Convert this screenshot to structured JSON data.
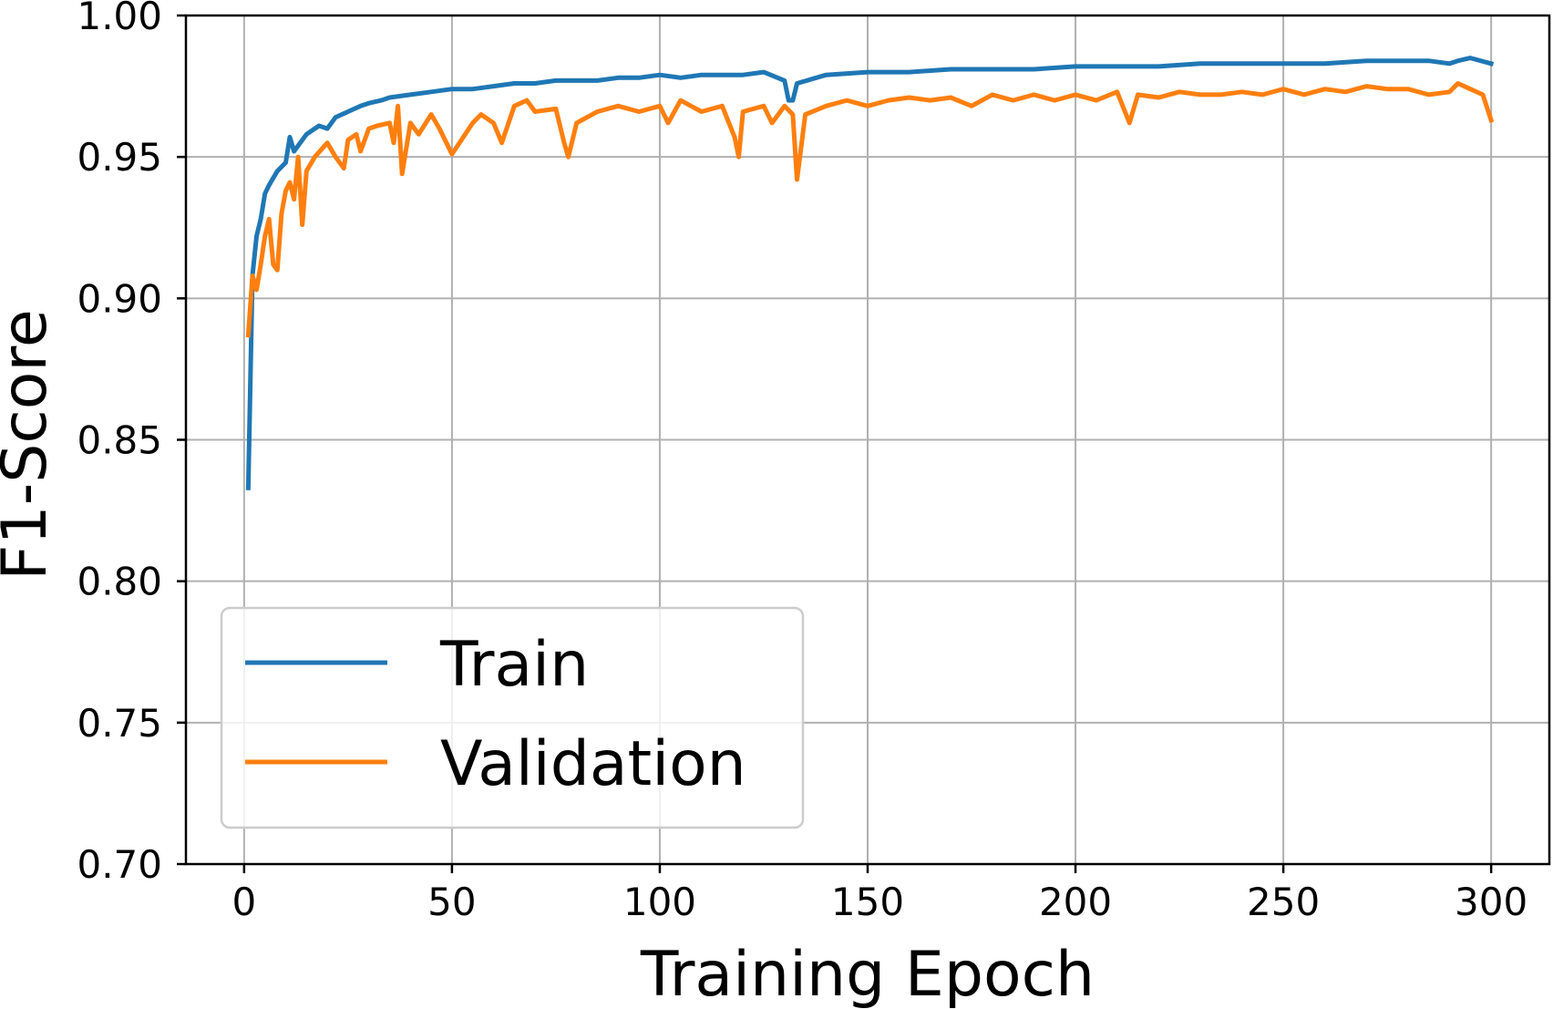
{
  "chart_data": {
    "type": "line",
    "xlabel": "Training Epoch",
    "ylabel": "F1-Score",
    "xlim": [
      -14,
      314
    ],
    "ylim": [
      0.7,
      1.0
    ],
    "xticks": [
      0,
      50,
      100,
      150,
      200,
      250,
      300
    ],
    "xtick_labels": [
      "0",
      "50",
      "100",
      "150",
      "200",
      "250",
      "300"
    ],
    "yticks": [
      0.7,
      0.75,
      0.8,
      0.85,
      0.9,
      0.95,
      1.0
    ],
    "ytick_labels": [
      "0.70",
      "0.75",
      "0.80",
      "0.85",
      "0.90",
      "0.95",
      "1.00"
    ],
    "grid": true,
    "legend": "lower-left",
    "series": [
      {
        "name": "Train",
        "color": "#1f77b4",
        "x": [
          1,
          2,
          3,
          4,
          5,
          6,
          8,
          10,
          11,
          12,
          15,
          18,
          20,
          22,
          25,
          28,
          30,
          33,
          35,
          40,
          45,
          50,
          55,
          60,
          65,
          70,
          75,
          80,
          85,
          90,
          95,
          100,
          105,
          110,
          115,
          120,
          125,
          130,
          131,
          132,
          133,
          140,
          150,
          160,
          170,
          180,
          190,
          200,
          210,
          220,
          230,
          240,
          250,
          260,
          270,
          280,
          285,
          290,
          292,
          295,
          300
        ],
        "y": [
          0.833,
          0.908,
          0.922,
          0.928,
          0.937,
          0.94,
          0.945,
          0.948,
          0.957,
          0.952,
          0.958,
          0.961,
          0.96,
          0.964,
          0.966,
          0.968,
          0.969,
          0.97,
          0.971,
          0.972,
          0.973,
          0.974,
          0.974,
          0.975,
          0.976,
          0.976,
          0.977,
          0.977,
          0.977,
          0.978,
          0.978,
          0.979,
          0.978,
          0.979,
          0.979,
          0.979,
          0.98,
          0.977,
          0.97,
          0.97,
          0.976,
          0.979,
          0.98,
          0.98,
          0.981,
          0.981,
          0.981,
          0.982,
          0.982,
          0.982,
          0.983,
          0.983,
          0.983,
          0.983,
          0.984,
          0.984,
          0.984,
          0.983,
          0.984,
          0.985,
          0.983
        ]
      },
      {
        "name": "Validation",
        "color": "#ff7f0e",
        "x": [
          1,
          2,
          3,
          4,
          5,
          6,
          7,
          8,
          9,
          10,
          11,
          12,
          13,
          14,
          15,
          17,
          20,
          22,
          24,
          25,
          27,
          28,
          30,
          32,
          35,
          36,
          37,
          38,
          40,
          42,
          45,
          47,
          50,
          55,
          57,
          60,
          62,
          65,
          68,
          70,
          75,
          77,
          78,
          80,
          85,
          90,
          95,
          100,
          102,
          105,
          110,
          115,
          118,
          119,
          120,
          125,
          127,
          130,
          132,
          133,
          135,
          140,
          145,
          150,
          155,
          160,
          165,
          170,
          175,
          180,
          185,
          190,
          195,
          200,
          205,
          210,
          213,
          215,
          220,
          225,
          230,
          235,
          240,
          245,
          250,
          255,
          260,
          265,
          270,
          275,
          280,
          285,
          290,
          292,
          295,
          298,
          300
        ],
        "y": [
          0.887,
          0.908,
          0.903,
          0.912,
          0.922,
          0.928,
          0.912,
          0.91,
          0.93,
          0.938,
          0.941,
          0.935,
          0.95,
          0.926,
          0.945,
          0.95,
          0.955,
          0.95,
          0.946,
          0.956,
          0.958,
          0.952,
          0.96,
          0.961,
          0.962,
          0.955,
          0.968,
          0.944,
          0.962,
          0.958,
          0.965,
          0.96,
          0.951,
          0.962,
          0.965,
          0.962,
          0.955,
          0.968,
          0.97,
          0.966,
          0.967,
          0.955,
          0.95,
          0.962,
          0.966,
          0.968,
          0.966,
          0.968,
          0.962,
          0.97,
          0.966,
          0.968,
          0.957,
          0.95,
          0.966,
          0.968,
          0.962,
          0.968,
          0.965,
          0.942,
          0.965,
          0.968,
          0.97,
          0.968,
          0.97,
          0.971,
          0.97,
          0.971,
          0.968,
          0.972,
          0.97,
          0.972,
          0.97,
          0.972,
          0.97,
          0.973,
          0.962,
          0.972,
          0.971,
          0.973,
          0.972,
          0.972,
          0.973,
          0.972,
          0.974,
          0.972,
          0.974,
          0.973,
          0.975,
          0.974,
          0.974,
          0.972,
          0.973,
          0.976,
          0.974,
          0.972,
          0.963
        ]
      }
    ]
  }
}
